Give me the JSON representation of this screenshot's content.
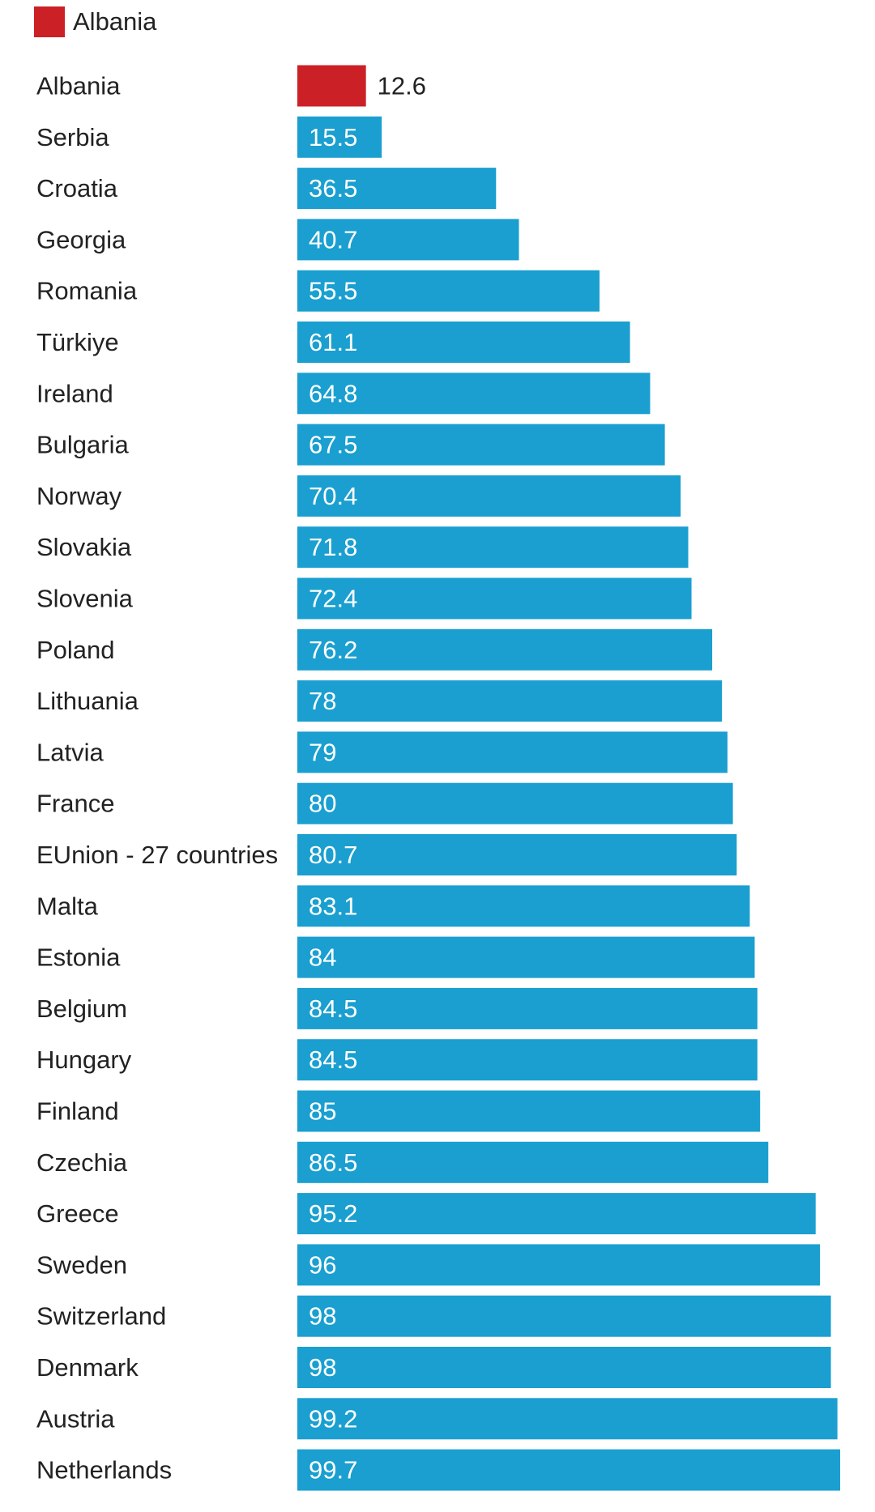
{
  "legend": {
    "label": "Albania",
    "color": "#cc2027"
  },
  "colors": {
    "highlight": "#cc2027",
    "bar": "#1a9fd0",
    "text": "#222222",
    "value_on_bar": "#ffffff"
  },
  "chart_data": {
    "type": "bar",
    "orientation": "horizontal",
    "title": "",
    "xlabel": "",
    "ylabel": "",
    "xlim": [
      0,
      100
    ],
    "grid": false,
    "legend_position": "top-left",
    "highlight_category": "Albania",
    "categories": [
      "Albania",
      "Serbia",
      "Croatia",
      "Georgia",
      "Romania",
      "Türkiye",
      "Ireland",
      "Bulgaria",
      "Norway",
      "Slovakia",
      "Slovenia",
      "Poland",
      "Lithuania",
      "Latvia",
      "France",
      "EUnion - 27 countries",
      "Malta",
      "Estonia",
      "Belgium",
      "Hungary",
      "Finland",
      "Czechia",
      "Greece",
      "Sweden",
      "Switzerland",
      "Denmark",
      "Austria",
      "Netherlands"
    ],
    "values": [
      12.6,
      15.5,
      36.5,
      40.7,
      55.5,
      61.1,
      64.8,
      67.5,
      70.4,
      71.8,
      72.4,
      76.2,
      78,
      79,
      80,
      80.7,
      83.1,
      84,
      84.5,
      84.5,
      85,
      86.5,
      95.2,
      96,
      98,
      98,
      99.2,
      99.7
    ]
  }
}
